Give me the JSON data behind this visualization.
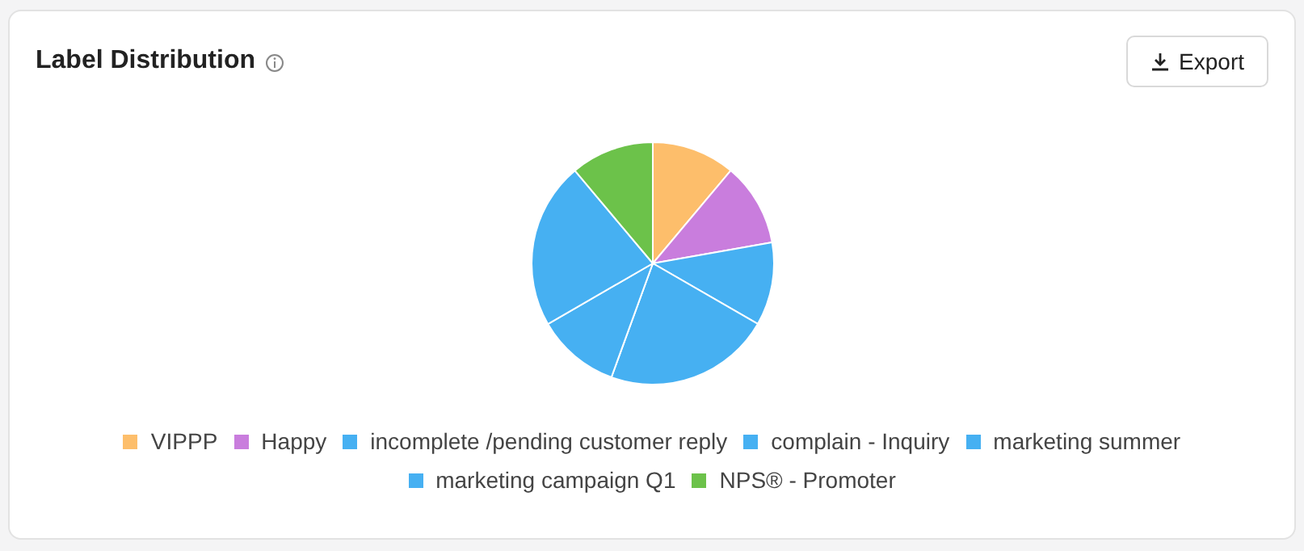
{
  "chart_data": {
    "type": "pie",
    "title": "Label Distribution",
    "annotations": [
      "Export"
    ],
    "categories": [
      "VIPPP",
      "Happy",
      "incomplete /pending customer reply",
      "complain - Inquiry",
      "marketing summer",
      "marketing campaign Q1",
      "NPS® - Promoter"
    ],
    "values": [
      11.11,
      11.11,
      11.11,
      22.22,
      11.11,
      22.22,
      11.12
    ],
    "colors": [
      "#fdbe6b",
      "#c97ddd",
      "#46b0f2",
      "#46b0f2",
      "#46b0f2",
      "#46b0f2",
      "#6cc24a"
    ],
    "legend": "bottom"
  }
}
